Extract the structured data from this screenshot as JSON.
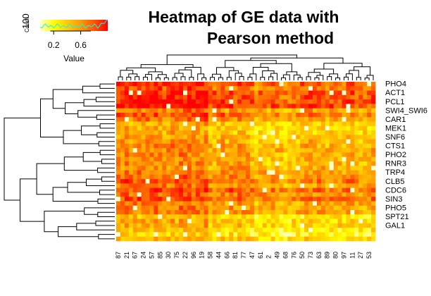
{
  "chart_data": {
    "type": "heatmap",
    "title_lines": [
      "Heatmap of GE data with",
      "Pearson method"
    ],
    "row_labels_shown": [
      "PHO4",
      "ACT1",
      "PCL1",
      "SWI4_SWI6",
      "CAR1",
      "MEK1",
      "SNF6",
      "CTS1",
      "PHO2",
      "RNR3",
      "TRP4",
      "CLB5",
      "CDC6",
      "SIN3",
      "PHO5",
      "SPT21",
      "GAL1"
    ],
    "column_labels": [
      "87",
      "21",
      "67",
      "24",
      "57",
      "85",
      "30",
      "75",
      "22",
      "96",
      "19",
      "58",
      "44",
      "66",
      "81",
      "77",
      "47",
      "61",
      "2",
      "49",
      "68",
      "76",
      "50",
      "73",
      "63",
      "89",
      "80",
      "97",
      "11",
      "27",
      "53"
    ],
    "color_key": {
      "label": "Value",
      "ticks": [
        "0.2",
        "0.6"
      ],
      "range": [
        0,
        1
      ],
      "colors": [
        "#ffffcc",
        "#ffff00",
        "#ffcc00",
        "#ff9900",
        "#ff5500",
        "#ff0000"
      ],
      "histogram_label": "Count",
      "histogram_max": "100",
      "histogram_line_color": "#00ffff"
    },
    "n_rows": 36,
    "n_cols": 62,
    "row_blocks": [
      {
        "rows": 2,
        "mean": 0.72
      },
      {
        "rows": 4,
        "mean": 0.82
      },
      {
        "rows": 3,
        "mean": 0.62
      },
      {
        "rows": 4,
        "mean": 0.42
      },
      {
        "rows": 5,
        "mean": 0.55
      },
      {
        "rows": 4,
        "mean": 0.6
      },
      {
        "rows": 5,
        "mean": 0.66
      },
      {
        "rows": 3,
        "mean": 0.5
      },
      {
        "rows": 6,
        "mean": 0.35
      }
    ],
    "column_blocks": [
      {
        "cols": 22,
        "offset": 0.12
      },
      {
        "cols": 10,
        "offset": 0.02
      },
      {
        "cols": 11,
        "offset": -0.08
      },
      {
        "cols": 19,
        "offset": -0.04
      }
    ]
  }
}
